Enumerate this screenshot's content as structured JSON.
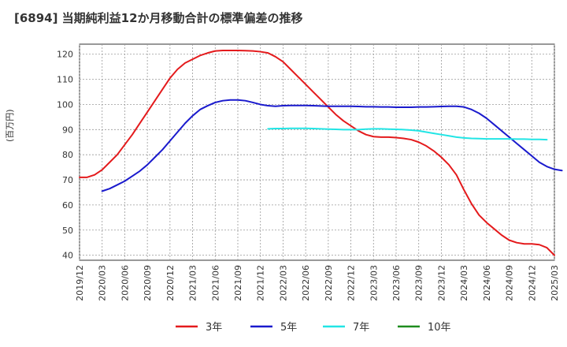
{
  "chart_data": {
    "type": "line",
    "title": "[6894]  当期純利益12か月移動合計の標準偏差の推移",
    "ylabel": "(百万円)",
    "xlabel": "",
    "ylim": [
      38,
      124
    ],
    "yticks": [
      40,
      50,
      60,
      70,
      80,
      90,
      100,
      110,
      120
    ],
    "x_start": "2019/12",
    "x_end": "2025/03",
    "xticks": [
      "2019/12",
      "2020/03",
      "2020/06",
      "2020/09",
      "2020/12",
      "2021/03",
      "2021/06",
      "2021/09",
      "2021/12",
      "2022/03",
      "2022/06",
      "2022/09",
      "2022/12",
      "2023/03",
      "2023/06",
      "2023/09",
      "2023/12",
      "2024/03",
      "2024/06",
      "2024/09",
      "2024/12",
      "2025/03"
    ],
    "grid": true,
    "legend_position": "bottom",
    "series": [
      {
        "name": "3年",
        "color": "#e41a1c",
        "start": "2019/12",
        "values": [
          71,
          71,
          72,
          74,
          77,
          80,
          84,
          88,
          92.5,
          97,
          101.5,
          106,
          110.5,
          114,
          116.5,
          118,
          119.5,
          120.5,
          121.3,
          121.5,
          121.5,
          121.5,
          121.4,
          121.3,
          121,
          120.5,
          119,
          117,
          114,
          111,
          108,
          105,
          102,
          99,
          96,
          93.5,
          91.5,
          89.5,
          88,
          87.2,
          87,
          87,
          86.8,
          86.5,
          86,
          85,
          83.5,
          81.5,
          79,
          76,
          72,
          66,
          60.5,
          56,
          53,
          50.5,
          48,
          46,
          45,
          44.5,
          44.5,
          44.2,
          43,
          40
        ]
      },
      {
        "name": "5年",
        "color": "#1a1acd",
        "start": "2020/03",
        "values": [
          65.5,
          66.5,
          68,
          69.5,
          71.5,
          73.5,
          76,
          79,
          82,
          85.5,
          89,
          92.5,
          95.5,
          98,
          99.5,
          100.8,
          101.5,
          101.8,
          101.8,
          101.5,
          100.8,
          100,
          99.5,
          99.3,
          99.5,
          99.6,
          99.6,
          99.6,
          99.5,
          99.4,
          99.3,
          99.3,
          99.3,
          99.3,
          99.2,
          99.1,
          99.1,
          99,
          99,
          98.9,
          98.9,
          98.9,
          99,
          99,
          99.1,
          99.2,
          99.3,
          99.3,
          99,
          98,
          96.5,
          94.5,
          92,
          89.5,
          87,
          84.5,
          82,
          79.5,
          77,
          75.3,
          74.2,
          73.7
        ]
      },
      {
        "name": "7年",
        "color": "#22e5e5",
        "start": "2022/01",
        "values": [
          90.3,
          90.4,
          90.4,
          90.5,
          90.5,
          90.5,
          90.4,
          90.3,
          90.2,
          90.1,
          90,
          90,
          90,
          90.2,
          90.3,
          90.3,
          90.2,
          90.1,
          90,
          89.8,
          89.5,
          89,
          88.5,
          88,
          87.5,
          87,
          86.7,
          86.5,
          86.4,
          86.3,
          86.3,
          86.3,
          86.3,
          86.2,
          86.2,
          86.1,
          86.1,
          86
        ]
      },
      {
        "name": "10年",
        "color": "#1e8c1e",
        "start": "2019/12",
        "values": []
      }
    ]
  }
}
